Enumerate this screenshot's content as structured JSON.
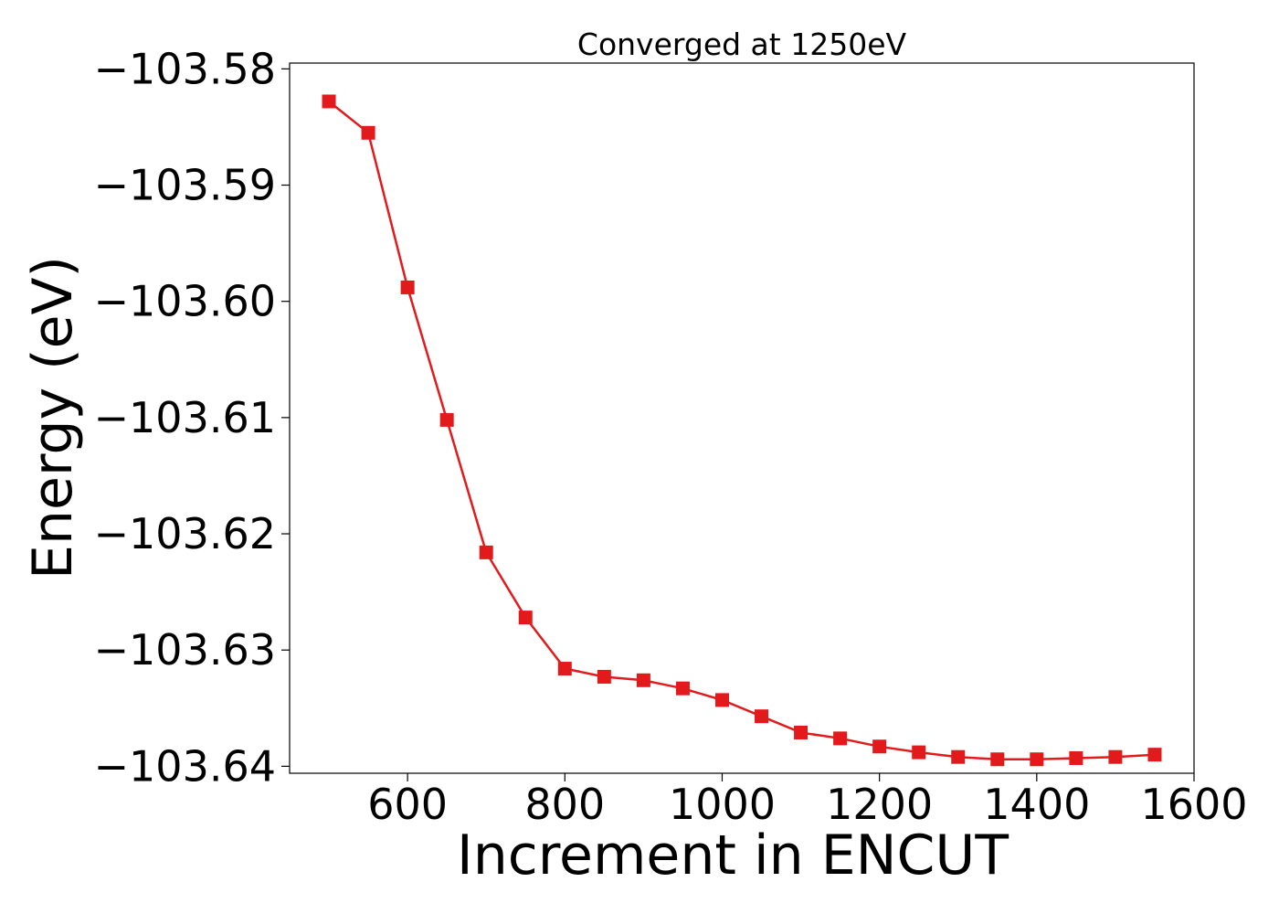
{
  "chart_data": {
    "type": "line",
    "title": "Converged at 1250eV",
    "xlabel": "Increment in ENCUT",
    "ylabel": "Energy (eV)",
    "xlim": [
      450,
      1600
    ],
    "ylim": [
      -103.6406,
      -103.5795
    ],
    "x_ticks": [
      600,
      800,
      1000,
      1200,
      1400,
      1600
    ],
    "x_tick_labels": [
      "600",
      "800",
      "1000",
      "1200",
      "1400",
      "1600"
    ],
    "y_ticks": [
      -103.58,
      -103.59,
      -103.6,
      -103.61,
      -103.62,
      -103.63,
      -103.64
    ],
    "y_tick_labels": [
      "−103.58",
      "−103.59",
      "−103.60",
      "−103.61",
      "−103.62",
      "−103.63",
      "−103.64"
    ],
    "grid": false,
    "series": [
      {
        "color": "#e31a1c",
        "marker": "square",
        "x": [
          500,
          550,
          600,
          650,
          700,
          750,
          800,
          850,
          900,
          950,
          1000,
          1050,
          1100,
          1150,
          1200,
          1250,
          1300,
          1350,
          1400,
          1450,
          1500,
          1550
        ],
        "y": [
          -103.5828,
          -103.5855,
          -103.5988,
          -103.6102,
          -103.6216,
          -103.6272,
          -103.6316,
          -103.6323,
          -103.6326,
          -103.6333,
          -103.6343,
          -103.6357,
          -103.6371,
          -103.6376,
          -103.6383,
          -103.6388,
          -103.6392,
          -103.6394,
          -103.6394,
          -103.6393,
          -103.6392,
          -103.639
        ]
      }
    ]
  }
}
